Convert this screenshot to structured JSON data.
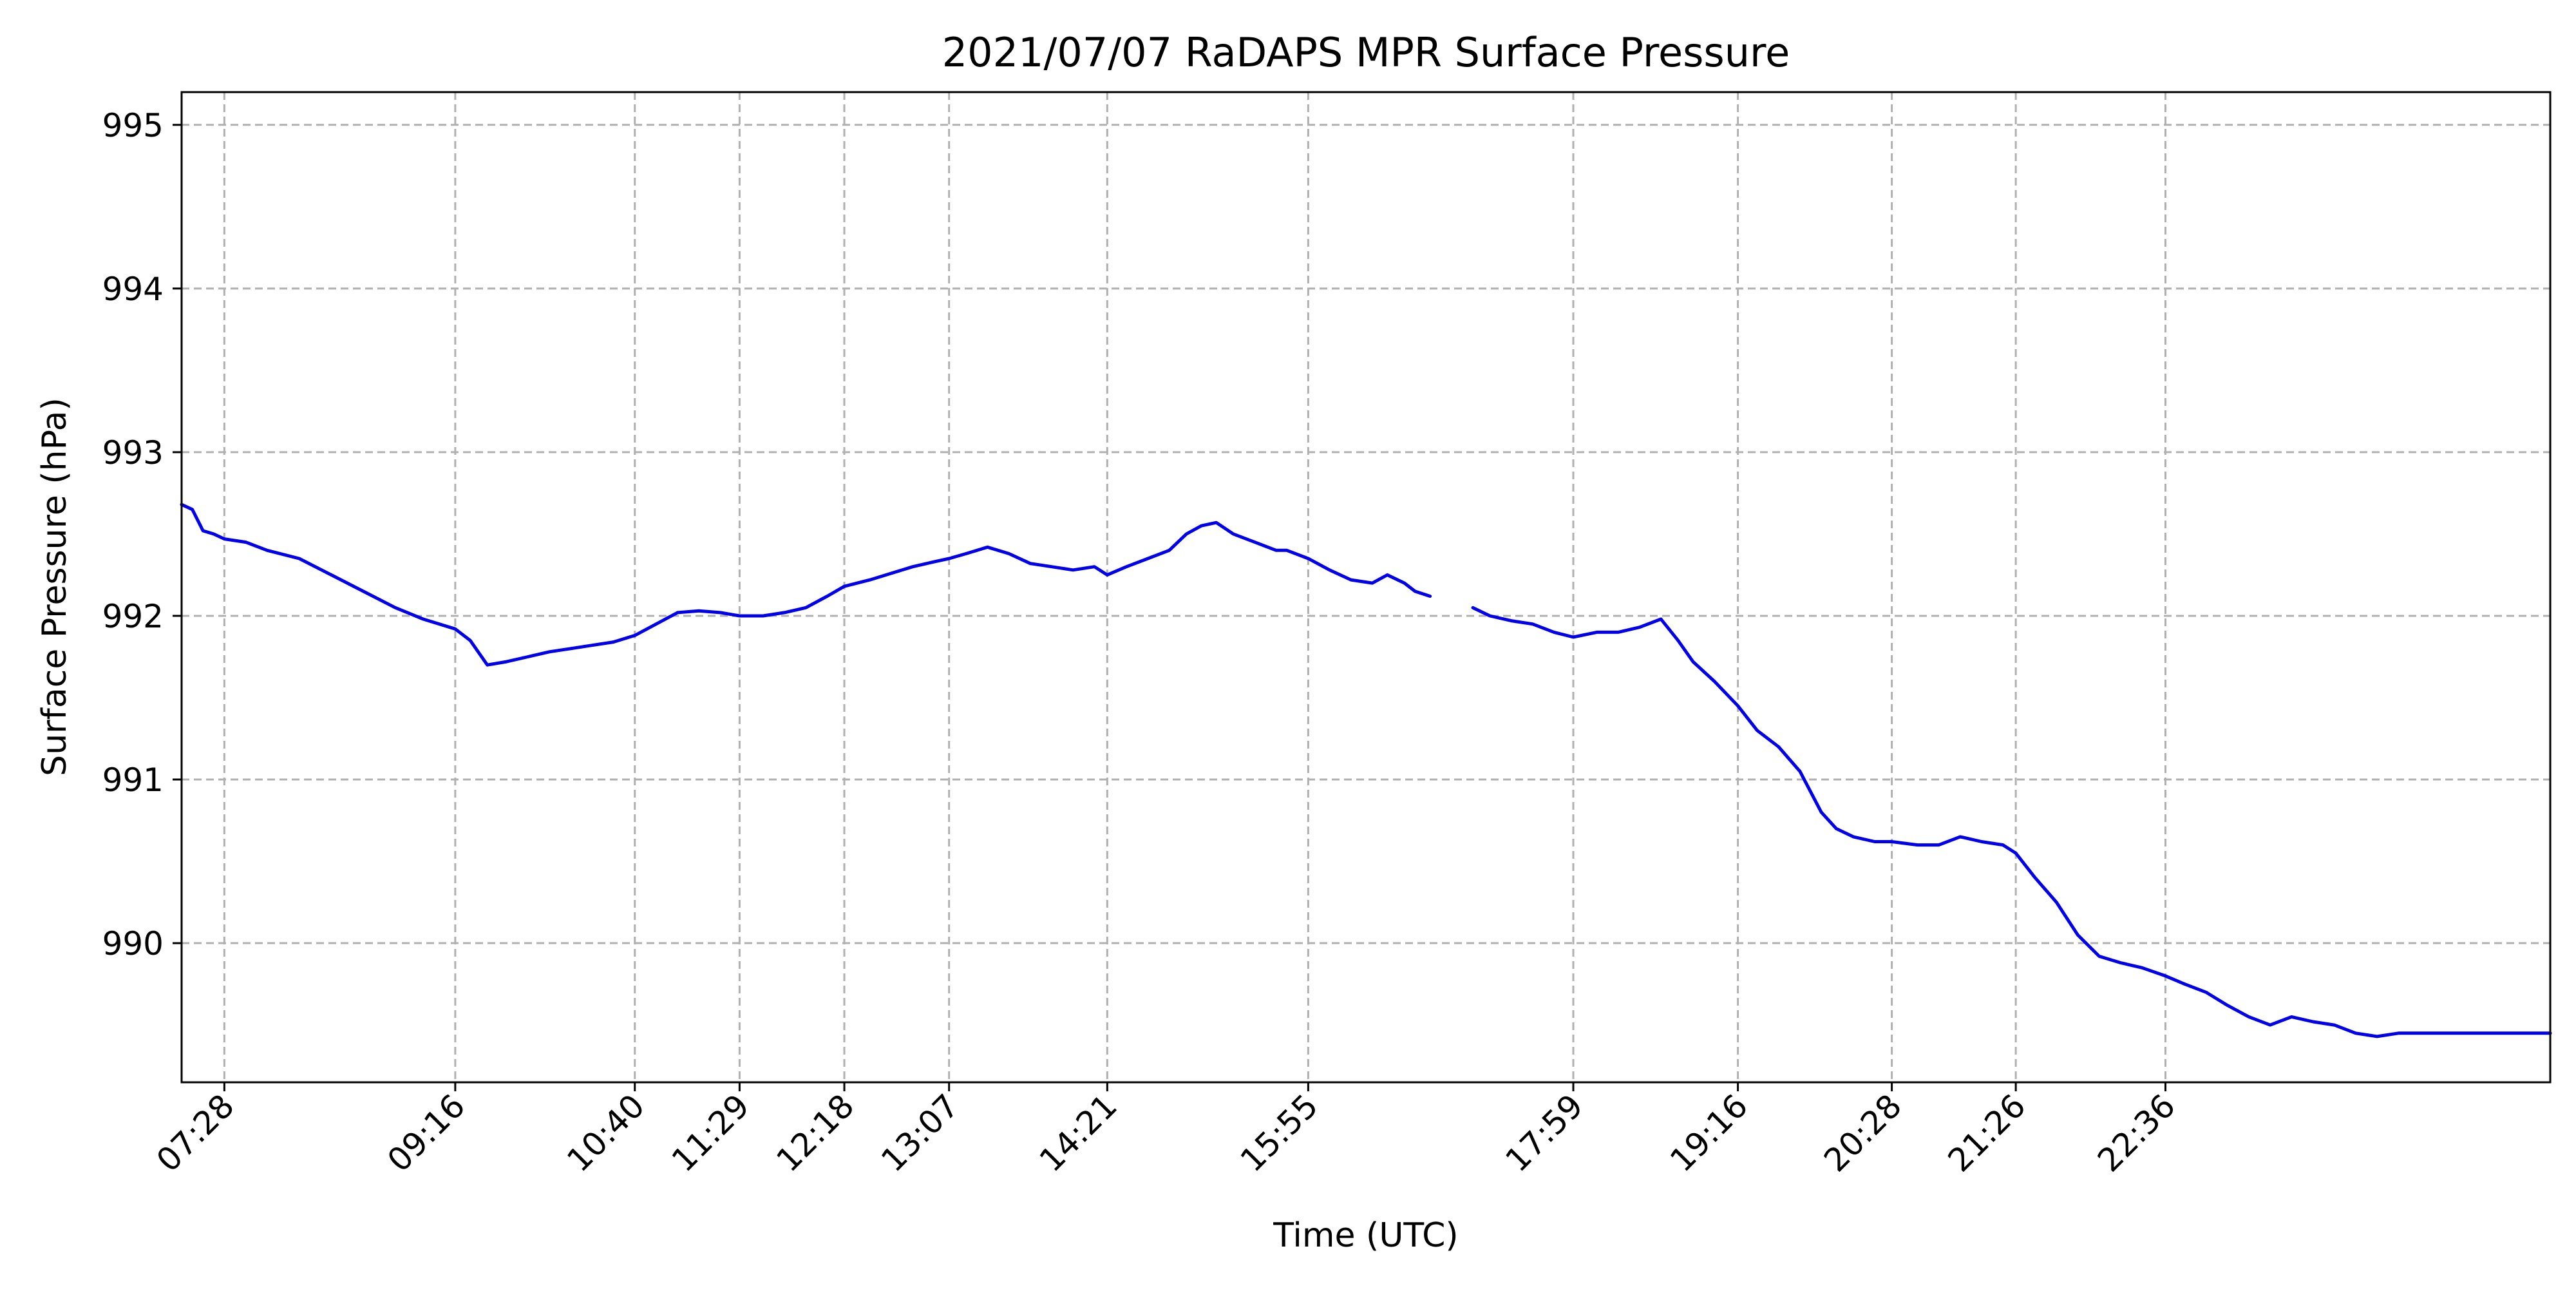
{
  "chart_data": {
    "type": "line",
    "title": "2021/07/07 RaDAPS MPR Surface Pressure",
    "xlabel": "Time (UTC)",
    "ylabel": "Surface Pressure (hPa)",
    "x_unit": "time of day (UTC)",
    "xlim": [
      "07:08",
      "25:36"
    ],
    "ylim": [
      989.15,
      995.2
    ],
    "grid": true,
    "grid_style": "dashed",
    "line_color": "#0000ee",
    "x_ticks": [
      "07:28",
      "09:16",
      "10:40",
      "11:29",
      "12:18",
      "13:07",
      "14:21",
      "15:55",
      "17:59",
      "19:16",
      "20:28",
      "21:26",
      "22:36"
    ],
    "y_ticks": [
      990,
      991,
      992,
      993,
      994,
      995
    ],
    "series": [
      {
        "segments": [
          {
            "x": [
              "07:08",
              "07:13",
              "07:18",
              "07:23",
              "07:28",
              "07:38",
              "07:48",
              "08:03",
              "08:18",
              "08:33",
              "08:48",
              "09:01",
              "09:16",
              "09:23",
              "09:31",
              "09:40",
              "09:50",
              "10:00",
              "10:10",
              "10:20",
              "10:30",
              "10:40",
              "10:50",
              "11:00",
              "11:10",
              "11:20",
              "11:29",
              "11:40",
              "11:50",
              "12:00",
              "12:10",
              "12:18",
              "12:30",
              "12:40",
              "12:50",
              "13:00",
              "13:07",
              "13:15",
              "13:25",
              "13:35",
              "13:45",
              "13:55",
              "14:05",
              "14:15",
              "14:21",
              "14:30",
              "14:40",
              "14:50",
              "14:58",
              "15:05",
              "15:12",
              "15:20",
              "15:30",
              "15:40",
              "15:45",
              "15:55",
              "16:05",
              "16:15",
              "16:25",
              "16:32",
              "16:40",
              "16:45",
              "16:52"
            ],
            "y": [
              992.68,
              992.65,
              992.52,
              992.5,
              992.47,
              992.45,
              992.4,
              992.35,
              992.25,
              992.15,
              992.05,
              991.98,
              991.92,
              991.85,
              991.7,
              991.72,
              991.75,
              991.78,
              991.8,
              991.82,
              991.84,
              991.88,
              991.95,
              992.02,
              992.03,
              992.02,
              992.0,
              992.0,
              992.02,
              992.05,
              992.12,
              992.18,
              992.22,
              992.26,
              992.3,
              992.33,
              992.35,
              992.38,
              992.42,
              992.38,
              992.32,
              992.3,
              992.28,
              992.3,
              992.25,
              992.3,
              992.35,
              992.4,
              992.5,
              992.55,
              992.57,
              992.5,
              992.45,
              992.4,
              992.4,
              992.35,
              992.28,
              992.22,
              992.2,
              992.25,
              992.2,
              992.15,
              992.12
            ]
          },
          {
            "x": [
              "17:12",
              "17:20",
              "17:30",
              "17:40",
              "17:50",
              "17:59",
              "18:10",
              "18:20",
              "18:30",
              "18:40",
              "18:48",
              "18:55",
              "19:05",
              "19:16",
              "19:25",
              "19:35",
              "19:45",
              "19:55",
              "20:02",
              "20:10",
              "20:20",
              "20:28",
              "20:40",
              "20:50",
              "21:00",
              "21:10",
              "21:20",
              "21:26",
              "21:35",
              "21:45",
              "21:55",
              "22:05",
              "22:15",
              "22:25",
              "22:36",
              "22:45",
              "22:55",
              "23:05",
              "23:15",
              "23:25",
              "23:35",
              "23:45",
              "23:55",
              "24:05",
              "24:15",
              "24:25",
              "24:35",
              "24:45",
              "24:55",
              "25:05",
              "25:15",
              "25:25",
              "25:36"
            ],
            "y": [
              992.05,
              992.0,
              991.97,
              991.95,
              991.9,
              991.87,
              991.9,
              991.9,
              991.93,
              991.98,
              991.85,
              991.72,
              991.6,
              991.45,
              991.3,
              991.2,
              991.05,
              990.8,
              990.7,
              990.65,
              990.62,
              990.62,
              990.6,
              990.6,
              990.65,
              990.62,
              990.6,
              990.55,
              990.4,
              990.25,
              990.05,
              989.92,
              989.88,
              989.85,
              989.8,
              989.75,
              989.7,
              989.62,
              989.55,
              989.5,
              989.55,
              989.52,
              989.5,
              989.45,
              989.43,
              989.45,
              989.45,
              989.45,
              989.45,
              989.45,
              989.45,
              989.45,
              989.45
            ]
          }
        ]
      }
    ]
  }
}
